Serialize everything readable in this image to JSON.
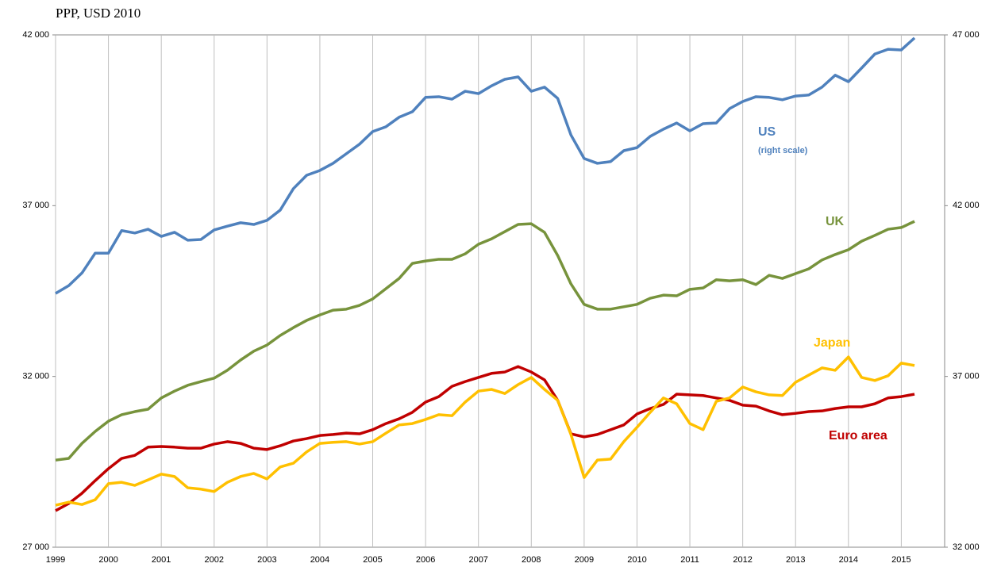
{
  "chart_data": {
    "type": "line",
    "title": "PPP, USD 2010",
    "annotations": [
      "(right scale)"
    ],
    "x": [
      1999,
      1999.25,
      1999.5,
      1999.75,
      2000,
      2000.25,
      2000.5,
      2000.75,
      2001,
      2001.25,
      2001.5,
      2001.75,
      2002,
      2002.25,
      2002.5,
      2002.75,
      2003,
      2003.25,
      2003.5,
      2003.75,
      2004,
      2004.25,
      2004.5,
      2004.75,
      2005,
      2005.25,
      2005.5,
      2005.75,
      2006,
      2006.25,
      2006.5,
      2006.75,
      2007,
      2007.25,
      2007.5,
      2007.75,
      2008,
      2008.25,
      2008.5,
      2008.75,
      2009,
      2009.25,
      2009.5,
      2009.75,
      2010,
      2010.25,
      2010.5,
      2010.75,
      2011,
      2011.25,
      2011.5,
      2011.75,
      2012,
      2012.25,
      2012.5,
      2012.75,
      2013,
      2013.25,
      2013.5,
      2013.75,
      2014,
      2014.25,
      2014.5,
      2014.75,
      2015,
      2015.25
    ],
    "xlim": [
      1999,
      2015.82
    ],
    "xticks": [
      1999,
      2000,
      2001,
      2002,
      2003,
      2004,
      2005,
      2006,
      2007,
      2008,
      2009,
      2010,
      2011,
      2012,
      2013,
      2014,
      2015
    ],
    "ylim": [
      27000,
      42000
    ],
    "yticks": [
      {
        "value": 27000,
        "label": "27 000"
      },
      {
        "value": 32000,
        "label": "32 000"
      },
      {
        "value": 37000,
        "label": "37 000"
      },
      {
        "value": 42000,
        "label": "42 000"
      }
    ],
    "y2lim": [
      32000,
      47000
    ],
    "y2ticks": [
      {
        "value": 32000,
        "label": "32 000"
      },
      {
        "value": 37000,
        "label": "37 000"
      },
      {
        "value": 42000,
        "label": "42 000"
      },
      {
        "value": 47000,
        "label": "47 000"
      }
    ],
    "grid": "x",
    "series": [
      {
        "name": "US",
        "color": "#4f81bd",
        "axis": "y2",
        "values": [
          39430,
          39660,
          40030,
          40610,
          40610,
          41270,
          41200,
          41310,
          41100,
          41220,
          40990,
          41010,
          41290,
          41400,
          41500,
          41450,
          41570,
          41870,
          42500,
          42890,
          43030,
          43240,
          43520,
          43800,
          44170,
          44310,
          44590,
          44750,
          45170,
          45190,
          45120,
          45350,
          45280,
          45510,
          45700,
          45770,
          45350,
          45470,
          45140,
          44070,
          43380,
          43240,
          43290,
          43610,
          43700,
          44030,
          44240,
          44420,
          44190,
          44400,
          44420,
          44840,
          45050,
          45190,
          45170,
          45100,
          45210,
          45240,
          45470,
          45820,
          45630,
          46030,
          46440,
          46580,
          46560,
          46910
        ]
      },
      {
        "name": "UK",
        "color": "#77933c",
        "values": [
          29550,
          29600,
          30040,
          30390,
          30690,
          30880,
          30970,
          31040,
          31370,
          31570,
          31740,
          31850,
          31950,
          32180,
          32480,
          32740,
          32920,
          33200,
          33430,
          33640,
          33800,
          33940,
          33970,
          34080,
          34270,
          34570,
          34870,
          35310,
          35380,
          35430,
          35430,
          35590,
          35870,
          36030,
          36240,
          36450,
          36470,
          36220,
          35540,
          34710,
          34110,
          33970,
          33970,
          34040,
          34110,
          34290,
          34380,
          34360,
          34550,
          34590,
          34830,
          34800,
          34830,
          34690,
          34960,
          34870,
          35010,
          35150,
          35410,
          35570,
          35710,
          35960,
          36130,
          36310,
          36360,
          36540
        ]
      },
      {
        "name": "Japan",
        "color": "#ffc000",
        "values": [
          28230,
          28320,
          28250,
          28390,
          28860,
          28900,
          28810,
          28970,
          29140,
          29070,
          28740,
          28700,
          28630,
          28900,
          29070,
          29160,
          29000,
          29350,
          29460,
          29790,
          30040,
          30070,
          30090,
          30020,
          30090,
          30340,
          30580,
          30620,
          30740,
          30880,
          30850,
          31250,
          31570,
          31620,
          31500,
          31760,
          31970,
          31620,
          31300,
          30300,
          29040,
          29550,
          29580,
          30090,
          30510,
          30950,
          31370,
          31200,
          30620,
          30440,
          31270,
          31370,
          31690,
          31550,
          31460,
          31440,
          31830,
          32040,
          32250,
          32180,
          32570,
          31970,
          31880,
          32020,
          32390,
          32320
        ]
      },
      {
        "name": "Euro area",
        "color": "#c00000",
        "values": [
          28070,
          28280,
          28580,
          28950,
          29300,
          29600,
          29690,
          29930,
          29950,
          29930,
          29900,
          29900,
          30020,
          30090,
          30040,
          29900,
          29860,
          29970,
          30110,
          30180,
          30270,
          30300,
          30340,
          30320,
          30440,
          30620,
          30760,
          30950,
          31250,
          31410,
          31710,
          31850,
          31970,
          32090,
          32130,
          32290,
          32130,
          31900,
          31300,
          30320,
          30230,
          30300,
          30440,
          30580,
          30900,
          31060,
          31180,
          31480,
          31460,
          31440,
          31370,
          31300,
          31160,
          31130,
          30990,
          30880,
          30920,
          30970,
          30990,
          31060,
          31110,
          31110,
          31200,
          31370,
          31410,
          31480
        ]
      }
    ]
  }
}
